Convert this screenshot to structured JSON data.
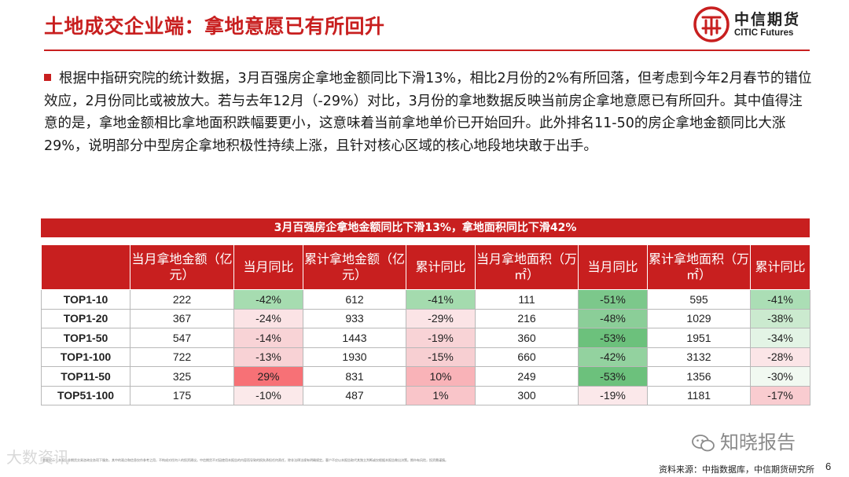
{
  "header": {
    "title": "土地成交企业端：拿地意愿已有所回升",
    "logo_cn": "中信期货",
    "logo_en": "CITIC Futures"
  },
  "body_text": "根据中指研究院的统计数据，3月百强房企拿地金额同比下滑13%，相比2月份的2%有所回落，但考虑到今年2月春节的错位效应，2月份同比或被放大。若与去年12月（-29%）对比，3月份的拿地数据反映当前房企拿地意愿已有所回升。其中值得注意的是，拿地金额相比拿地面积跌幅要更小，这意味着当前拿地单价已开始回升。此外排名11-50的房企拿地金额同比大涨29%，说明部分中型房企拿地积极性持续上涨，且针对核心区域的核心地段地块敢于出手。",
  "banner": "3月百强房企拿地金额同比下滑13%，拿地面积同比下滑42%",
  "table": {
    "headers": [
      "",
      "当月拿地金额（亿元）",
      "当月同比",
      "累计拿地金额（亿元）",
      "累计同比",
      "当月拿地面积（万㎡）",
      "当月同比",
      "累计拿地面积（万㎡）",
      "累计同比"
    ],
    "rows": [
      {
        "label": "TOP1-10",
        "v1": "222",
        "p1": "-42%",
        "v2": "612",
        "p2": "-41%",
        "v3": "111",
        "p3": "-51%",
        "v4": "595",
        "p4": "-41%"
      },
      {
        "label": "TOP1-20",
        "v1": "367",
        "p1": "-24%",
        "v2": "933",
        "p2": "-29%",
        "v3": "216",
        "p3": "-48%",
        "v4": "1029",
        "p4": "-38%"
      },
      {
        "label": "TOP1-50",
        "v1": "547",
        "p1": "-14%",
        "v2": "1443",
        "p2": "-19%",
        "v3": "360",
        "p3": "-53%",
        "v4": "1951",
        "p4": "-34%"
      },
      {
        "label": "TOP1-100",
        "v1": "722",
        "p1": "-13%",
        "v2": "1930",
        "p2": "-15%",
        "v3": "660",
        "p3": "-42%",
        "v4": "3132",
        "p4": "-28%"
      },
      {
        "label": "TOP11-50",
        "v1": "325",
        "p1": "29%",
        "v2": "831",
        "p2": "10%",
        "v3": "249",
        "p3": "-53%",
        "v4": "1356",
        "p4": "-30%"
      },
      {
        "label": "TOP51-100",
        "v1": "175",
        "p1": "-10%",
        "v2": "487",
        "p2": "1%",
        "v3": "300",
        "p3": "-19%",
        "v4": "1181",
        "p4": "-17%"
      }
    ]
  },
  "colors": {
    "brand_red": "#c81f1f",
    "cell_p1": [
      "#a6dcb0",
      "#fbe3e5",
      "#f8d3d6",
      "#f8d2d5",
      "#f77176",
      "#fbe9ea"
    ],
    "cell_p2": [
      "#a4dbae",
      "#fbe4e6",
      "#f8d3d6",
      "#f7cfd2",
      "#f9b3b8",
      "#f9c5c9"
    ],
    "cell_p3": [
      "#7cc88b",
      "#8bce98",
      "#6cc17c",
      "#93d29f",
      "#6cc17c",
      "#fbe8ea"
    ],
    "cell_p4": [
      "#abdeb5",
      "#cbeacf",
      "#e3f4e5",
      "#fbe5e7",
      "#f1f9f1",
      "#f9ccd0"
    ]
  },
  "footer": {
    "source": "资料来源：中指数据库，中信期货研究所",
    "page": "6",
    "disclaimer": "重要提示：本报告非期货交易咨询业务项下服务，其中的观点和信息仅作参考之用，不构成对任何人的投资建议。中信期货不对因使用本报告的内容而导致的损失承担任何责任，除非法律法规有明确规定。客户不应以本报告取代其独立判断或仅根据本报告做出决策。期市有风险，投资需谨慎。",
    "watermark_left": "大数资讯",
    "watermark_right": "知晓报告"
  }
}
